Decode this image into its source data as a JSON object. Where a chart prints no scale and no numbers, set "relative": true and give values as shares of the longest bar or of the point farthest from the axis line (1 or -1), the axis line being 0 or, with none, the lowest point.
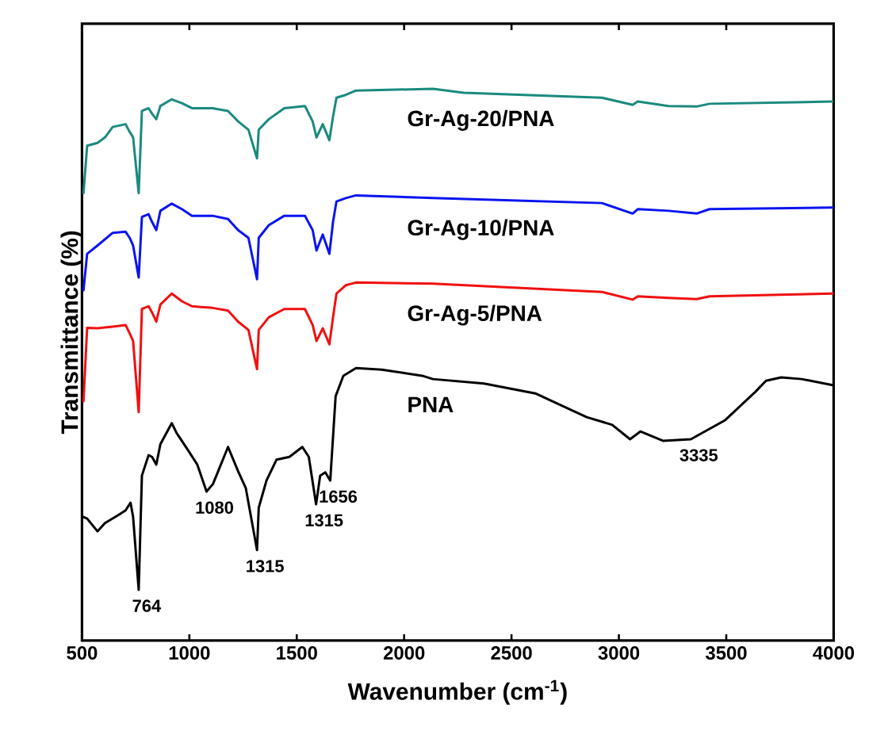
{
  "chart_data": {
    "type": "line",
    "relative": true,
    "xlabel": "Wavenumber (cm$^{-1}$)",
    "ylabel": "Transmittance (%)",
    "xlim": [
      500,
      4000
    ],
    "xticks": [
      500,
      1000,
      1500,
      2000,
      2500,
      3000,
      3500,
      4000
    ],
    "grid": false,
    "tick_labels": "x",
    "series": [
      {
        "name": "Gr-Ag-20/PNA",
        "color": "#1a8a7e",
        "x": [
          507,
          524,
          572,
          607,
          643,
          703,
          722,
          738,
          764,
          779,
          810,
          826,
          846,
          865,
          918,
          965,
          1012,
          1108,
          1180,
          1227,
          1275,
          1315,
          1323,
          1370,
          1442,
          1538,
          1574,
          1592,
          1621,
          1652,
          1669,
          1685,
          1728,
          1776,
          2134,
          2277,
          2921,
          3064,
          3088,
          3231,
          3362,
          3422,
          3995
        ],
        "values": [
          0.811,
          0.897,
          0.902,
          0.912,
          0.931,
          0.936,
          0.922,
          0.912,
          0.811,
          0.96,
          0.965,
          0.955,
          0.945,
          0.969,
          0.981,
          0.974,
          0.965,
          0.965,
          0.96,
          0.941,
          0.926,
          0.874,
          0.926,
          0.945,
          0.965,
          0.969,
          0.941,
          0.912,
          0.936,
          0.907,
          0.95,
          0.984,
          0.989,
          0.997,
          1.0,
          0.993,
          0.984,
          0.971,
          0.977,
          0.969,
          0.968,
          0.973,
          0.977
        ]
      },
      {
        "name": "Gr-Ag-10/PNA",
        "color": "#0a14f0",
        "x": [
          507,
          524,
          572,
          643,
          703,
          722,
          738,
          764,
          779,
          810,
          826,
          846,
          865,
          918,
          965,
          1012,
          1108,
          1180,
          1227,
          1275,
          1315,
          1323,
          1370,
          1442,
          1538,
          1574,
          1592,
          1621,
          1652,
          1669,
          1685,
          1728,
          1776,
          2134,
          2921,
          3064,
          3088,
          3231,
          3362,
          3422,
          3995
        ],
        "values": [
          0.635,
          0.701,
          0.716,
          0.739,
          0.741,
          0.73,
          0.716,
          0.658,
          0.768,
          0.773,
          0.759,
          0.744,
          0.779,
          0.792,
          0.782,
          0.77,
          0.77,
          0.764,
          0.744,
          0.73,
          0.655,
          0.73,
          0.753,
          0.77,
          0.77,
          0.744,
          0.707,
          0.736,
          0.701,
          0.759,
          0.796,
          0.802,
          0.807,
          0.802,
          0.793,
          0.774,
          0.782,
          0.779,
          0.774,
          0.782,
          0.785
        ]
      },
      {
        "name": "Gr-Ag-5/PNA",
        "color": "#f01010",
        "x": [
          507,
          524,
          572,
          643,
          703,
          722,
          738,
          764,
          779,
          810,
          826,
          846,
          865,
          918,
          965,
          1012,
          1108,
          1180,
          1227,
          1275,
          1315,
          1323,
          1370,
          1442,
          1538,
          1574,
          1592,
          1621,
          1652,
          1669,
          1685,
          1728,
          1776,
          2134,
          2921,
          3064,
          3088,
          3231,
          3362,
          3422,
          3995
        ],
        "values": [
          0.434,
          0.567,
          0.566,
          0.569,
          0.572,
          0.557,
          0.543,
          0.414,
          0.601,
          0.606,
          0.595,
          0.578,
          0.609,
          0.629,
          0.615,
          0.606,
          0.603,
          0.598,
          0.578,
          0.563,
          0.492,
          0.563,
          0.586,
          0.601,
          0.601,
          0.572,
          0.543,
          0.566,
          0.537,
          0.586,
          0.629,
          0.644,
          0.649,
          0.647,
          0.632,
          0.618,
          0.624,
          0.621,
          0.619,
          0.624,
          0.629
        ]
      },
      {
        "name": "PNA",
        "color": "#000000",
        "x": [
          507,
          524,
          572,
          607,
          667,
          703,
          726,
          738,
          764,
          779,
          810,
          826,
          846,
          865,
          918,
          941,
          989,
          1037,
          1080,
          1110,
          1180,
          1227,
          1263,
          1315,
          1323,
          1359,
          1406,
          1466,
          1526,
          1556,
          1590,
          1609,
          1633,
          1656,
          1681,
          1717,
          1776,
          1896,
          2084,
          2134,
          2372,
          2611,
          2850,
          2969,
          3052,
          3100,
          3207,
          3335,
          3493,
          3636,
          3685,
          3756,
          3851,
          3995
        ],
        "values": [
          0.224,
          0.221,
          0.198,
          0.213,
          0.227,
          0.236,
          0.25,
          0.224,
          0.092,
          0.299,
          0.336,
          0.333,
          0.319,
          0.356,
          0.394,
          0.376,
          0.348,
          0.319,
          0.27,
          0.284,
          0.351,
          0.307,
          0.276,
          0.164,
          0.241,
          0.29,
          0.328,
          0.333,
          0.351,
          0.333,
          0.247,
          0.299,
          0.305,
          0.29,
          0.443,
          0.48,
          0.494,
          0.491,
          0.48,
          0.474,
          0.466,
          0.448,
          0.405,
          0.391,
          0.365,
          0.379,
          0.362,
          0.365,
          0.399,
          0.451,
          0.471,
          0.477,
          0.474,
          0.463
        ]
      }
    ],
    "annotations": [
      {
        "text": "764",
        "x": 764,
        "y": 0.092
      },
      {
        "text": "1080",
        "x": 1080,
        "y": 0.27
      },
      {
        "text": "1315",
        "x": 1315,
        "y": 0.164
      },
      {
        "text": "1315",
        "x": 1590,
        "y": 0.247
      },
      {
        "text": "1656",
        "x": 1656,
        "y": 0.29
      },
      {
        "text": "3335",
        "x": 3335,
        "y": 0.365
      }
    ]
  }
}
